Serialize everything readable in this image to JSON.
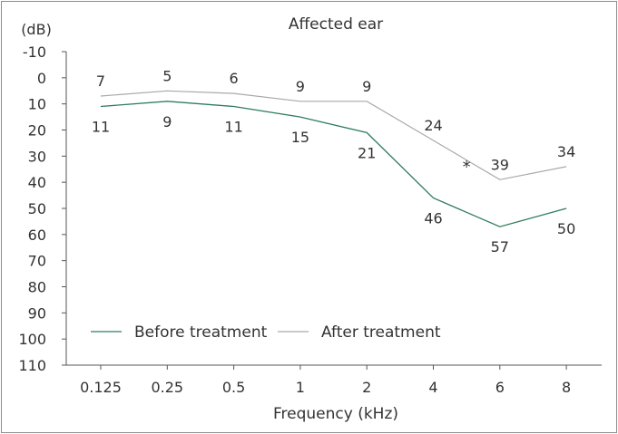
{
  "chart_data": {
    "type": "line",
    "title": "Affected ear",
    "xlabel": "Frequency (kHz)",
    "ylabel": "(dB)",
    "categories": [
      "0.125",
      "0.25",
      "0.5",
      "1",
      "2",
      "4",
      "6",
      "8"
    ],
    "ylim": [
      -10,
      110
    ],
    "y_ticks": [
      -10,
      0,
      10,
      20,
      30,
      40,
      50,
      60,
      70,
      80,
      90,
      100,
      110
    ],
    "y_inverted": true,
    "grid": false,
    "legend_position": "bottom-left",
    "series": [
      {
        "name": "Before treatment",
        "color": "#2e7d5b",
        "values": [
          11,
          9,
          11,
          15,
          21,
          46,
          57,
          50
        ],
        "labels": [
          "11",
          "9",
          "11",
          "15",
          "21",
          "46",
          "57",
          "50"
        ]
      },
      {
        "name": "After treatment",
        "color": "#a9a9a9",
        "values": [
          7,
          5,
          6,
          9,
          9,
          24,
          39,
          34
        ],
        "labels": [
          "7",
          "5",
          "6",
          "9",
          "9",
          "24",
          "39",
          "34"
        ]
      }
    ],
    "annotations": [
      {
        "text": "*",
        "between": [
          "4",
          "6"
        ],
        "y": 32
      }
    ]
  }
}
